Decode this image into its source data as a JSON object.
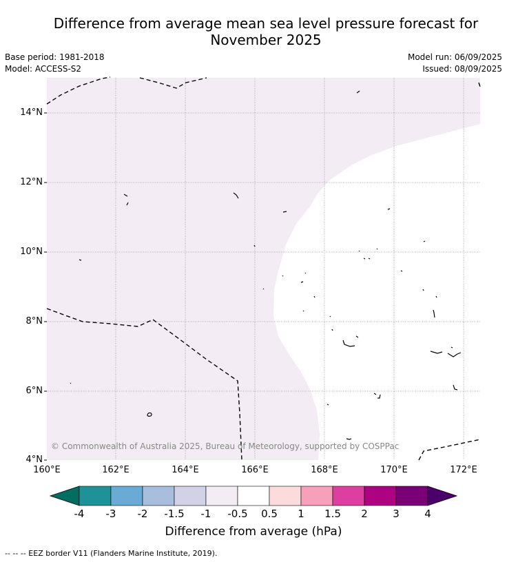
{
  "header": {
    "title_line1": "Difference from average mean sea level pressure forecast for",
    "title_line2": "November 2025",
    "base_period": "Base period: 1981-2018",
    "model": "Model: ACCESS-S2",
    "model_run": "Model run: 06/09/2025",
    "issued": "Issued: 08/09/2025"
  },
  "map": {
    "lat_labels": [
      "14°N",
      "12°N",
      "10°N",
      "8°N",
      "6°N",
      "4°N"
    ],
    "lon_labels": [
      "160°E",
      "162°E",
      "164°E",
      "166°E",
      "168°E",
      "170°E",
      "172°E"
    ],
    "shaded_anomaly_class": "-1 to -0.5",
    "shaded_color": "#f4ecf5",
    "copyright": "© Commonwealth of Australia 2025, Bureau of Meteorology, supported by COSPPac"
  },
  "colorbar": {
    "title": "Difference from average (hPa)",
    "ticks": [
      "-4",
      "-3",
      "-2",
      "-1.5",
      "-1",
      "-0.5",
      "0.5",
      "1",
      "1.5",
      "2",
      "3",
      "4"
    ],
    "colors": [
      "#026e62",
      "#1f9298",
      "#6aabd6",
      "#a9bddc",
      "#d1d2e6",
      "#f4ecf5",
      "#ffffff",
      "#fcdbdd",
      "#f89fb9",
      "#de3ea0",
      "#ad0382",
      "#7a0078",
      "#4c006a"
    ]
  },
  "footnote": "-- -- -- EEZ border V11 (Flanders Marine Institute, 2019)."
}
